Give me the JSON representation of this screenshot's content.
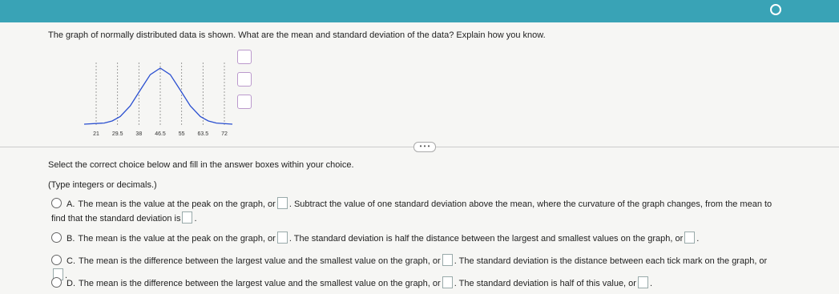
{
  "question": "The graph of normally distributed data is shown. What are the mean and standard deviation of the data? Explain how you know.",
  "graph": {
    "tick_labels": [
      "21",
      "29.5",
      "38",
      "46.5",
      "55",
      "63.5",
      "72"
    ]
  },
  "instructions": [
    "Select the correct choice below and fill in the answer boxes within your choice.",
    "(Type integers or decimals.)"
  ],
  "choices": [
    {
      "letter": "A.",
      "parts": [
        "The mean is the value at the peak on the graph, or",
        ". Subtract the value of one standard deviation above the mean, where the curvature of the graph changes, from the mean to find that the standard deviation is",
        "."
      ]
    },
    {
      "letter": "B.",
      "parts": [
        "The mean is the value at the peak on the graph, or",
        ". The standard deviation is half the distance between the largest and smallest values on the graph, or",
        "."
      ]
    },
    {
      "letter": "C.",
      "parts": [
        "The mean is the difference between the largest value and the smallest value on the graph, or",
        ". The standard deviation is the distance between each tick mark on the graph, or",
        "."
      ]
    },
    {
      "letter": "D.",
      "parts": [
        "The mean is the difference between the largest value and the smallest value on the graph, or",
        ". The standard deviation is half of this value, or",
        "."
      ]
    }
  ]
}
